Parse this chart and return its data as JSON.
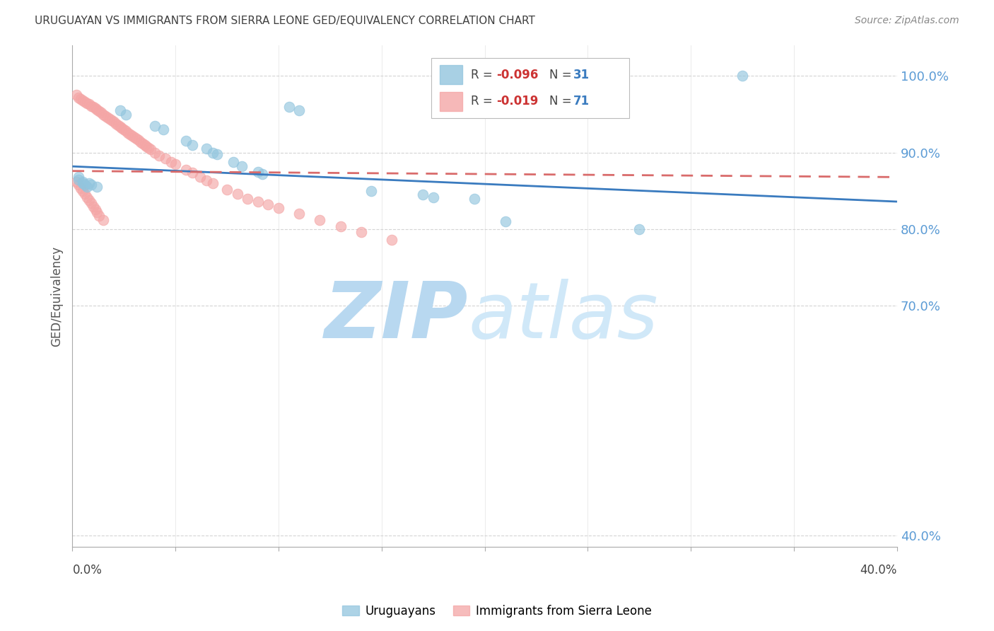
{
  "title": "URUGUAYAN VS IMMIGRANTS FROM SIERRA LEONE GED/EQUIVALENCY CORRELATION CHART",
  "source": "Source: ZipAtlas.com",
  "ylabel": "GED/Equivalency",
  "ytick_labels": [
    "100.0%",
    "90.0%",
    "80.0%",
    "70.0%",
    "40.0%"
  ],
  "ytick_vals": [
    1.0,
    0.9,
    0.8,
    0.7,
    0.4
  ],
  "xmin": 0.0,
  "xmax": 0.4,
  "ymin": 0.385,
  "ymax": 1.04,
  "blue_color": "#92c5de",
  "pink_color": "#f4a6a6",
  "blue_line_color": "#3a7bbf",
  "pink_line_color": "#d96b6b",
  "uruguayan_x": [
    0.003,
    0.005,
    0.006,
    0.007,
    0.008,
    0.023,
    0.026,
    0.04,
    0.044,
    0.055,
    0.058,
    0.065,
    0.068,
    0.07,
    0.078,
    0.082,
    0.09,
    0.092,
    0.105,
    0.11,
    0.145,
    0.17,
    0.175,
    0.195,
    0.21,
    0.275,
    0.325,
    0.003,
    0.005,
    0.009,
    0.012
  ],
  "uruguayan_y": [
    0.868,
    0.862,
    0.858,
    0.855,
    0.86,
    0.955,
    0.95,
    0.935,
    0.93,
    0.915,
    0.91,
    0.905,
    0.9,
    0.898,
    0.888,
    0.882,
    0.875,
    0.872,
    0.96,
    0.955,
    0.85,
    0.845,
    0.842,
    0.84,
    0.81,
    0.8,
    1.0,
    0.865,
    0.86,
    0.858,
    0.855
  ],
  "sierra_x": [
    0.002,
    0.003,
    0.004,
    0.005,
    0.006,
    0.007,
    0.008,
    0.009,
    0.01,
    0.011,
    0.012,
    0.013,
    0.014,
    0.015,
    0.016,
    0.017,
    0.018,
    0.019,
    0.02,
    0.021,
    0.022,
    0.023,
    0.024,
    0.025,
    0.026,
    0.027,
    0.028,
    0.029,
    0.03,
    0.031,
    0.032,
    0.033,
    0.034,
    0.035,
    0.036,
    0.037,
    0.038,
    0.04,
    0.042,
    0.045,
    0.048,
    0.05,
    0.055,
    0.058,
    0.062,
    0.065,
    0.068,
    0.075,
    0.08,
    0.085,
    0.09,
    0.095,
    0.1,
    0.11,
    0.12,
    0.13,
    0.14,
    0.155,
    0.002,
    0.003,
    0.004,
    0.005,
    0.006,
    0.007,
    0.008,
    0.009,
    0.01,
    0.011,
    0.012,
    0.013,
    0.015
  ],
  "sierra_y": [
    0.975,
    0.972,
    0.97,
    0.968,
    0.966,
    0.964,
    0.963,
    0.961,
    0.96,
    0.958,
    0.956,
    0.954,
    0.952,
    0.95,
    0.948,
    0.946,
    0.944,
    0.942,
    0.94,
    0.938,
    0.936,
    0.934,
    0.932,
    0.93,
    0.928,
    0.926,
    0.924,
    0.922,
    0.92,
    0.918,
    0.916,
    0.914,
    0.912,
    0.91,
    0.908,
    0.906,
    0.904,
    0.9,
    0.896,
    0.892,
    0.888,
    0.885,
    0.878,
    0.874,
    0.868,
    0.864,
    0.86,
    0.852,
    0.846,
    0.84,
    0.836,
    0.832,
    0.828,
    0.82,
    0.812,
    0.804,
    0.796,
    0.786,
    0.862,
    0.858,
    0.854,
    0.85,
    0.846,
    0.842,
    0.838,
    0.834,
    0.83,
    0.826,
    0.822,
    0.818,
    0.812
  ],
  "blue_trend_x": [
    0.0,
    0.4
  ],
  "blue_trend_y": [
    0.882,
    0.836
  ],
  "pink_trend_x": [
    0.0,
    0.4
  ],
  "pink_trend_y": [
    0.876,
    0.868
  ],
  "watermark_zip": "ZIP",
  "watermark_atlas": "atlas",
  "watermark_color": "#cde4f5",
  "grid_color": "#d0d0d0",
  "background_color": "#ffffff",
  "right_axis_color": "#5b9bd5",
  "title_color": "#404040",
  "source_color": "#888888"
}
